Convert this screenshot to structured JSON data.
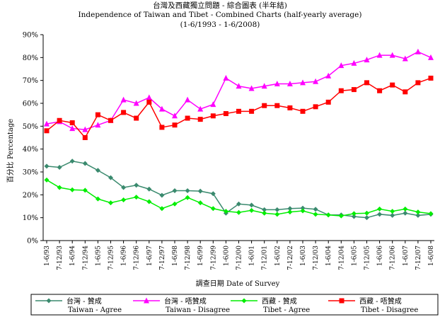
{
  "chart_data": {
    "type": "line",
    "title": "台灣及西藏獨立問題 - 綜合圖表 (半年結)",
    "subtitle": "Independence of Taiwan and Tibet - Combined Charts (half-yearly average)",
    "date_range": "(1-6/1993 - 1-6/2008)",
    "xlabel": "調查日期 Date of Survey",
    "ylabel": "百分比 Percentage",
    "ylim": [
      0,
      90
    ],
    "yticks": [
      "0%",
      "10%",
      "20%",
      "30%",
      "40%",
      "50%",
      "60%",
      "70%",
      "80%",
      "90%"
    ],
    "grid": false,
    "legend_position": "bottom",
    "categories": [
      "1-6/93",
      "7-12/93",
      "1-6/94",
      "7-12/94",
      "1-6/95",
      "7-12/95",
      "1-6/96",
      "7-12/96",
      "1-6/97",
      "7-12/97",
      "1-6/98",
      "7-12/98",
      "1-6/99",
      "7-12/99",
      "1-6/00",
      "7-12/00",
      "1-6/01",
      "7-12/01",
      "1-6/02",
      "7-12/02",
      "1-6/03",
      "7-12/03",
      "1-6/04",
      "7-12/04",
      "1-6/05",
      "7-12/05",
      "1-6/06",
      "7-12/06",
      "1-6/07",
      "7-12/07",
      "1-6/08"
    ],
    "series": [
      {
        "name": "台灣 - 贊成",
        "name_en": "Taiwan - Agree",
        "color": "#3a8a6e",
        "marker": "diamond",
        "values": [
          32.5,
          32,
          34.7,
          33.7,
          30.7,
          27.5,
          23.2,
          24.2,
          22.5,
          19.8,
          21.8,
          21.8,
          21.6,
          20.5,
          12,
          16,
          15.5,
          13.5,
          13.5,
          14,
          14.2,
          13.7,
          11.2,
          11.2,
          10.5,
          10,
          11.5,
          11,
          12,
          11,
          11.5
        ]
      },
      {
        "name": "台灣 - 唔贊成",
        "name_en": "Taiwan - Disagree",
        "color": "#ff00ff",
        "marker": "triangle",
        "values": [
          51,
          52,
          49,
          48.5,
          50.5,
          52.5,
          61.5,
          60,
          62.5,
          57.5,
          54.5,
          61.5,
          57.5,
          59.5,
          71,
          67.5,
          66.5,
          67.5,
          68.5,
          68.5,
          69,
          69.5,
          72,
          76.5,
          77.5,
          79,
          81,
          81,
          79.5,
          82.5,
          80
        ]
      },
      {
        "name": "西藏 - 贊成",
        "name_en": "Tibet - Agree",
        "color": "#00ee00",
        "marker": "diamond",
        "values": [
          26.5,
          23.2,
          22.2,
          22,
          18.2,
          16.5,
          17.8,
          19,
          17,
          14,
          16,
          18.8,
          16.5,
          14,
          12.8,
          12.3,
          13.2,
          12,
          11.5,
          12.5,
          13,
          11.5,
          11.2,
          10.8,
          11.8,
          12,
          13.8,
          12.8,
          13.8,
          12.5,
          11.8
        ]
      },
      {
        "name": "西藏 - 唔贊成",
        "name_en": "Tibet - Disagree",
        "color": "#ff0000",
        "marker": "square",
        "values": [
          48,
          52.5,
          51.5,
          45,
          55,
          52.5,
          56,
          53.5,
          60.5,
          49.5,
          50.5,
          53.5,
          53,
          54.5,
          55.5,
          56.5,
          56.5,
          59,
          59,
          58,
          56.5,
          58.5,
          60.5,
          65.5,
          66,
          69,
          65.5,
          68,
          65,
          69,
          71
        ]
      }
    ]
  }
}
